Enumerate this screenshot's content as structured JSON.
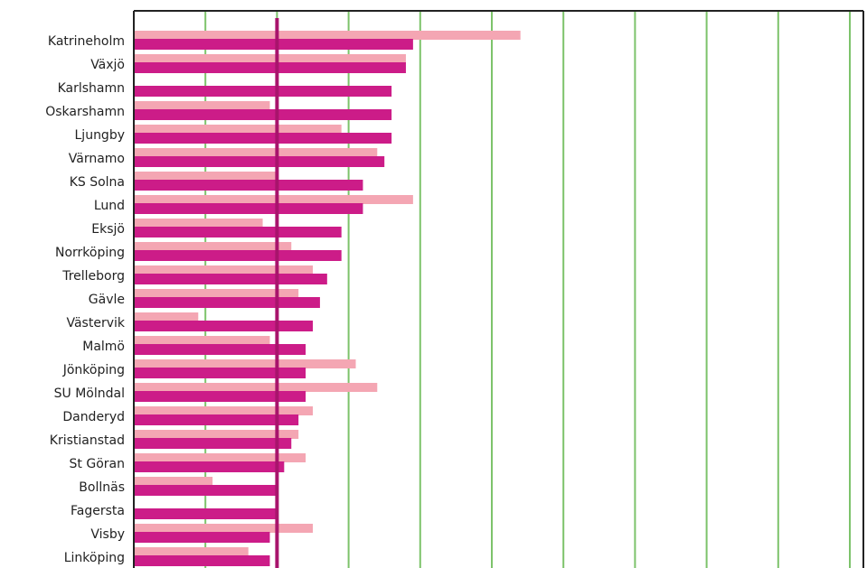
{
  "chart_data": {
    "type": "bar",
    "orientation": "horizontal",
    "grid": true,
    "categories": [
      "Katrineholm",
      "Växjö",
      "Karlshamn",
      "Oskarshamn",
      "Ljungby",
      "Värnamo",
      "KS Solna",
      "Lund",
      "Eksjö",
      "Norrköping",
      "Trelleborg",
      "Gävle",
      "Västervik",
      "Malmö",
      "Jönköping",
      "SU Mölndal",
      "Danderyd",
      "Kristianstad",
      "St Göran",
      "Bollnäs",
      "Fagersta",
      "Visby",
      "Linköping"
    ],
    "xlim": [
      0,
      10
    ],
    "series": [
      {
        "values": [
          5.4,
          3.8,
          0,
          1.9,
          2.9,
          3.4,
          2.0,
          3.9,
          1.8,
          2.2,
          2.5,
          2.3,
          0.9,
          1.9,
          3.1,
          3.4,
          2.5,
          2.3,
          2.4,
          1.1,
          0,
          2.5,
          1.6
        ],
        "color": "#f4a6b3"
      },
      {
        "values": [
          3.9,
          3.8,
          3.6,
          3.6,
          3.6,
          3.5,
          3.2,
          3.2,
          2.9,
          2.9,
          2.7,
          2.6,
          2.5,
          2.4,
          2.4,
          2.4,
          2.3,
          2.2,
          2.1,
          2.0,
          2.0,
          1.9,
          1.9
        ],
        "color": "#cc1c88"
      }
    ],
    "reference_value": 2.0,
    "reference_color": "#a8146c",
    "grid_color": "#7dc36b",
    "axis_color": "#222222"
  }
}
